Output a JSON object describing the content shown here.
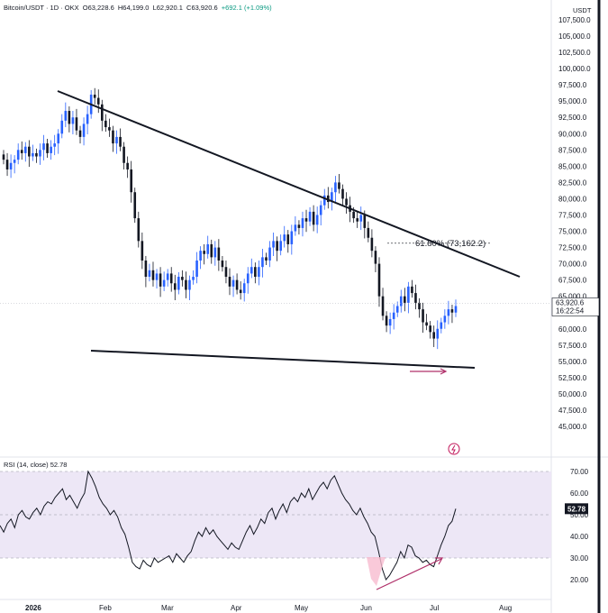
{
  "header": {
    "symbol": "Bitcoin/USDT · 1D · OKX",
    "open": "O63,228.6",
    "high": "H64,199.0",
    "low": "L62,920.1",
    "close": "C63,920.6",
    "change": "+692.1 (+1.09%)"
  },
  "currency": "USDT",
  "price_panel": {
    "last_price": "63,920.6",
    "countdown": "16:22:54",
    "fib_label": "61.80% (73,162.2)"
  },
  "rsi_panel": {
    "label": "RSI (14, close)",
    "value": "52.78"
  },
  "colors": {
    "up": "#2962ff",
    "down": "#131722",
    "trendline": "#131722",
    "rsi_line": "#131722",
    "rsi_band": "#ede7f6",
    "rsi_zone": "#9c27b0",
    "arrow": "#b0306a",
    "badge": "#c2185b",
    "price_tag": "#ffffff"
  },
  "chart_data": [
    {
      "type": "candlestick",
      "y_axis_labels": [
        "107,500.0",
        "105,000.0",
        "102,500.0",
        "100,000.0",
        "97,500.0",
        "95,000.0",
        "92,500.0",
        "90,000.0",
        "87,500.0",
        "85,000.0",
        "82,500.0",
        "80,000.0",
        "77,500.0",
        "75,000.0",
        "72,500.0",
        "70,000.0",
        "67,500.0",
        "65,000.0",
        "62,500.0",
        "60,000.0",
        "57,500.0",
        "55,000.0",
        "52,500.0",
        "50,000.0",
        "47,500.0",
        "45,000.0"
      ],
      "x_axis_labels": [
        "2026",
        "Feb",
        "Mar",
        "Apr",
        "May",
        "Jun",
        "Jul",
        "Aug"
      ],
      "ylim": [
        45000,
        108000
      ],
      "series": [
        {
          "values": [
            86000,
            84500,
            85500,
            86000,
            87500,
            87000,
            88000,
            86500,
            87000,
            86500,
            87500,
            88500,
            87000,
            88000,
            88500,
            90000,
            92000,
            93500,
            91500,
            92500,
            90500,
            89500,
            91500,
            93000,
            96000,
            95500,
            94500,
            92000,
            91000,
            90500,
            88500,
            89500,
            88000,
            85500,
            84500,
            81000,
            77000,
            73500,
            70500,
            68000,
            69000,
            67500,
            68500,
            66500,
            67500,
            68500,
            67000,
            66000,
            68000,
            67500,
            66000,
            67500,
            68000,
            70500,
            72000,
            71500,
            73000,
            71000,
            72500,
            70500,
            69500,
            68000,
            66500,
            67500,
            66000,
            65500,
            67000,
            68500,
            69500,
            68000,
            69500,
            71000,
            70500,
            72500,
            73500,
            72000,
            73500,
            74500,
            73000,
            75000,
            76000,
            75500,
            77000,
            76500,
            78000,
            76000,
            77500,
            79000,
            80500,
            79500,
            81000,
            82500,
            81500,
            80000,
            79000,
            78000,
            77000,
            76500,
            77500,
            75500,
            74000,
            72000,
            70000,
            65000,
            62000,
            60500,
            61500,
            62500,
            63500,
            65000,
            64000,
            66500,
            65500,
            64000,
            63000,
            61000,
            60500,
            59500,
            58500,
            60000,
            61000,
            62000,
            63000,
            62500,
            63500
          ]
        }
      ],
      "last_value": 63920.6,
      "fib_level": 73162.2
    },
    {
      "type": "line",
      "title": "RSI (14, close)",
      "y_axis_labels": [
        "70.00",
        "60.00",
        "50.00",
        "40.00",
        "30.00",
        "20.00"
      ],
      "ylim": [
        15,
        72
      ],
      "bands": [
        30,
        50,
        70
      ],
      "series": [
        {
          "values": [
            45,
            42,
            46,
            48,
            44,
            50,
            52,
            49,
            48,
            51,
            53,
            50,
            54,
            56,
            55,
            58,
            60,
            62,
            57,
            59,
            56,
            53,
            57,
            60,
            70,
            67,
            63,
            58,
            55,
            53,
            50,
            52,
            49,
            44,
            41,
            35,
            28,
            26,
            25,
            29,
            27,
            26,
            30,
            28,
            29,
            30,
            31,
            28,
            32,
            30,
            28,
            31,
            33,
            38,
            42,
            40,
            44,
            41,
            43,
            40,
            38,
            36,
            34,
            37,
            35,
            34,
            38,
            42,
            45,
            41,
            44,
            48,
            46,
            51,
            53,
            48,
            52,
            55,
            51,
            56,
            58,
            56,
            60,
            58,
            62,
            57,
            60,
            63,
            65,
            62,
            66,
            68,
            64,
            60,
            57,
            55,
            52,
            50,
            53,
            49,
            46,
            42,
            40,
            33,
            25,
            20,
            22,
            25,
            28,
            33,
            30,
            36,
            35,
            31,
            30,
            28,
            29,
            27,
            26,
            31,
            36,
            40,
            45,
            47,
            52.78
          ]
        }
      ]
    }
  ]
}
